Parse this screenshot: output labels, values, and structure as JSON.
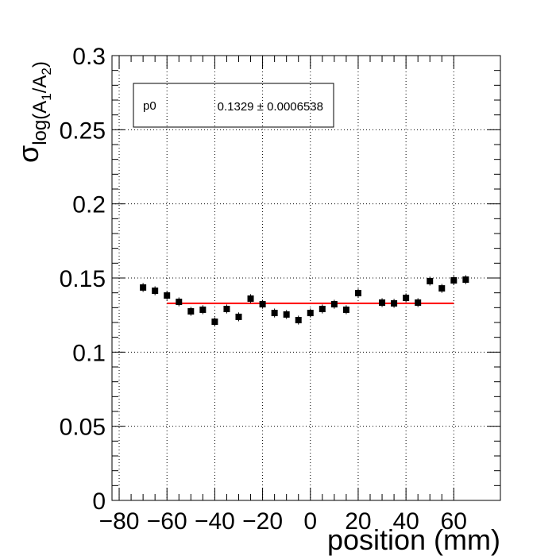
{
  "chart_data": {
    "type": "scatter",
    "x_label": "position (mm)",
    "y_label": [
      "σ",
      "log(A",
      "1",
      "/A",
      "2",
      ")"
    ],
    "xlim": [
      -83,
      79.5
    ],
    "ylim": [
      0,
      0.3
    ],
    "xticks": [
      {
        "value": -80,
        "label": "−80"
      },
      {
        "value": -60,
        "label": "−60"
      },
      {
        "value": -40,
        "label": "−40"
      },
      {
        "value": -20,
        "label": "−20"
      },
      0,
      20,
      40,
      60
    ],
    "yticks": [
      0,
      0.05,
      0.1,
      0.15,
      0.2,
      0.25,
      0.3
    ],
    "grid": true,
    "series": [
      {
        "color": "#000000",
        "x": [
          -70,
          -65,
          -60,
          -55,
          -50,
          -45,
          -40,
          -35,
          -30,
          -25,
          -20,
          -15,
          -10,
          -5,
          0,
          5,
          10,
          15,
          20,
          30,
          35,
          40,
          45,
          50,
          55,
          60,
          65
        ],
        "values": [
          0.1436,
          0.1414,
          0.1382,
          0.1339,
          0.1275,
          0.1286,
          0.1205,
          0.1291,
          0.1238,
          0.1361,
          0.1323,
          0.1264,
          0.1254,
          0.1216,
          0.1264,
          0.1291,
          0.1323,
          0.1286,
          0.1398,
          0.1334,
          0.1329,
          0.1366,
          0.1334,
          0.1479,
          0.143,
          0.1484,
          0.1489
        ],
        "errors": [
          0.003,
          0.003,
          0.003,
          0.003,
          0.003,
          0.003,
          0.003,
          0.003,
          0.003,
          0.003,
          0.003,
          0.003,
          0.003,
          0.003,
          0.003,
          0.003,
          0.003,
          0.003,
          0.003,
          0.003,
          0.003,
          0.003,
          0.003,
          0.003,
          0.003,
          0.003,
          0.003
        ]
      }
    ],
    "fit": {
      "name": "p0",
      "value": 0.1329,
      "value_label": "0.1329 ± 0.0006538",
      "color": "#ff0000",
      "xrange": [
        -60,
        60
      ]
    }
  }
}
